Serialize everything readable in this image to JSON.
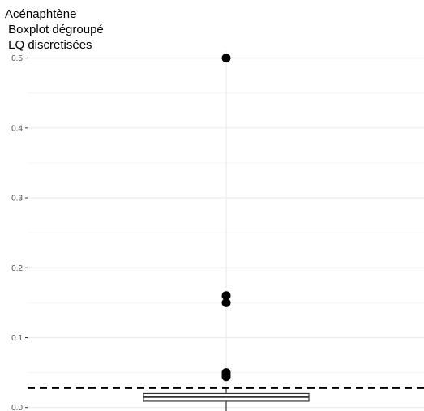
{
  "chart_data": {
    "type": "boxplot",
    "title_lines": [
      "Acénaphtène",
      " Boxplot dégroupé",
      " LQ discretisées"
    ],
    "xlabel": "",
    "ylabel": "",
    "ylim": [
      -0.005,
      0.51
    ],
    "y_ticks": [
      0.0,
      0.1,
      0.2,
      0.3,
      0.4,
      0.5
    ],
    "y_tick_labels": [
      "0.0",
      "0.1",
      "0.2",
      "0.3",
      "0.4",
      "0.5"
    ],
    "grid": true,
    "box": {
      "q1": 0.009,
      "median": 0.015,
      "q3": 0.02,
      "whisker_low": -0.01,
      "whisker_high": 0.028
    },
    "outliers": [
      0.5,
      0.16,
      0.15,
      0.05,
      0.047,
      0.044
    ],
    "reference_line": {
      "y": 0.028,
      "style": "dashed"
    },
    "colors": {
      "background": "#ffffff",
      "grid": "#ebebeb",
      "points": "#000000",
      "box_stroke": "#333333"
    }
  }
}
